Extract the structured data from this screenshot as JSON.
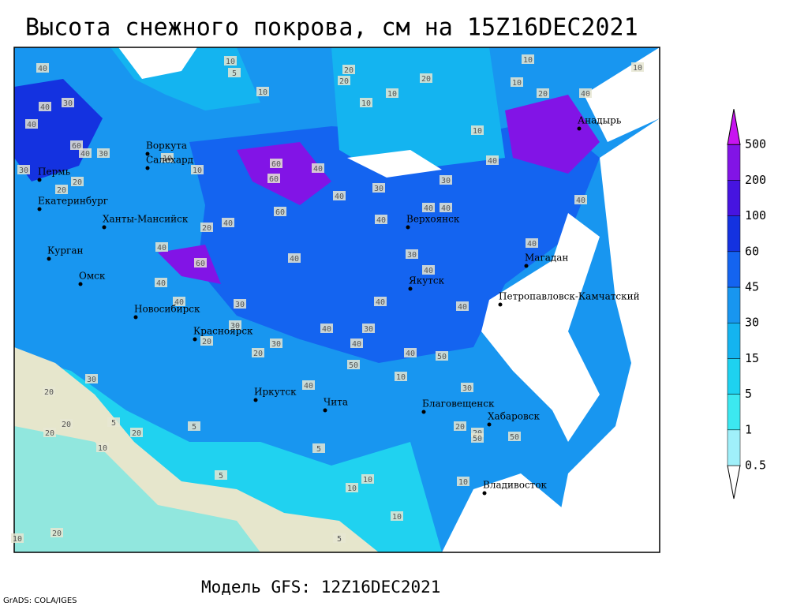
{
  "header": {
    "title": "Высота снежного покрова, см на 15Z16DEC2021"
  },
  "footer": {
    "model": "Модель GFS: 12Z16DEC2021",
    "credit": "GrADS: COLA/IGES"
  },
  "colorbar": {
    "levels": [
      0.5,
      1,
      5,
      15,
      30,
      45,
      60,
      100,
      200,
      500
    ],
    "colors": [
      "#ffffff",
      "#a0f0fa",
      "#3ce8f0",
      "#1ed2f0",
      "#14b4f0",
      "#1896f0",
      "#1464f0",
      "#1432e0",
      "#4614e0",
      "#8214e6",
      "#c814f0"
    ]
  },
  "cities": [
    "Воркута",
    "Салехард",
    "Пермь",
    "Екатеринбург",
    "Ханты-Мансийск",
    "Курган",
    "Омск",
    "Новосибирск",
    "Красноярск",
    "Иркутск",
    "Чита",
    "Верхоянск",
    "Якутск",
    "Магадан",
    "Петропавловск-Камчатский",
    "Анадырь",
    "Благовещенск",
    "Хабаровск",
    "Владивосток"
  ],
  "contour_labels": [
    10,
    5,
    20,
    20,
    20,
    10,
    10,
    10,
    10,
    10,
    10,
    10,
    20,
    40,
    40,
    30,
    40,
    40,
    60,
    40,
    30,
    30,
    20,
    20,
    10,
    10,
    60,
    60,
    40,
    40,
    30,
    30,
    40,
    40,
    40,
    40,
    40,
    60,
    40,
    20,
    40,
    30,
    40,
    40,
    40,
    60,
    40,
    30,
    40,
    40,
    40,
    30,
    40,
    30,
    20,
    30,
    20,
    40,
    50,
    40,
    50,
    10,
    30,
    20,
    20,
    5,
    20,
    10,
    20,
    5,
    5,
    5,
    10,
    10,
    10,
    5,
    20,
    10,
    20,
    20,
    30,
    10,
    50,
    50,
    40
  ]
}
